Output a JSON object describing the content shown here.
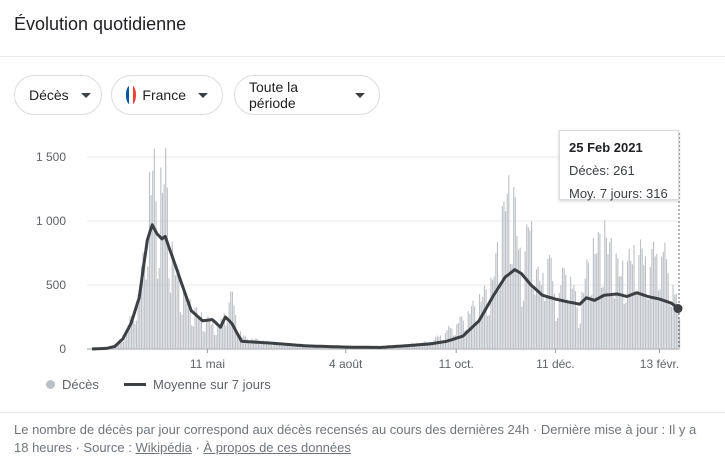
{
  "header": {
    "title": "Évolution quotidienne"
  },
  "filters": {
    "metric": "Décès",
    "country": "France",
    "period": "Toute la période"
  },
  "tooltip": {
    "date": "25 Feb 2021",
    "deaths": "Décès: 261",
    "average": "Moy. 7 jours: 316"
  },
  "legend": {
    "bars": "Décès",
    "line": "Moyenne sur 7 jours"
  },
  "footer": {
    "text": "Le nombre de décès par jour correspond aux décès recensés au cours des dernières 24h",
    "separator": "·",
    "updated": "Dernière mise à jour : Il y a 18 heures",
    "source_label": "Source :",
    "source_link": "Wikipédia",
    "about_link": "À propos de ces données"
  },
  "colors": {
    "bars": "#bdc1c6",
    "line": "#3c4043",
    "grid": "#e8eaed"
  },
  "chart_data": {
    "type": "bar",
    "x_range": [
      "2020-03-01",
      "2021-02-25"
    ],
    "ylim": [
      0,
      1500
    ],
    "y_ticks": [
      "0",
      "500",
      "1 000",
      "1 500"
    ],
    "x_ticks": [
      "11 mai",
      "4 août",
      "11 oct.",
      "11 déc.",
      "13 févr."
    ],
    "x_tick_dates": [
      "2020-05-11",
      "2020-08-04",
      "2020-10-11",
      "2020-12-11",
      "2021-02-13"
    ],
    "series": [
      {
        "name": "Décès",
        "points": [
          [
            "2020-03-01",
            0
          ],
          [
            "2020-03-10",
            5
          ],
          [
            "2020-03-15",
            20
          ],
          [
            "2020-03-20",
            100
          ],
          [
            "2020-03-25",
            260
          ],
          [
            "2020-03-30",
            500
          ],
          [
            "2020-04-02",
            800
          ],
          [
            "2020-04-05",
            1350
          ],
          [
            "2020-04-08",
            1400
          ],
          [
            "2020-04-10",
            1000
          ],
          [
            "2020-04-12",
            1300
          ],
          [
            "2020-04-15",
            1420
          ],
          [
            "2020-04-18",
            800
          ],
          [
            "2020-04-22",
            600
          ],
          [
            "2020-04-26",
            450
          ],
          [
            "2020-04-30",
            350
          ],
          [
            "2020-05-05",
            280
          ],
          [
            "2020-05-11",
            230
          ],
          [
            "2020-05-18",
            180
          ],
          [
            "2020-05-25",
            450
          ],
          [
            "2020-06-01",
            100
          ],
          [
            "2020-06-15",
            60
          ],
          [
            "2020-07-01",
            40
          ],
          [
            "2020-07-20",
            25
          ],
          [
            "2020-08-04",
            20
          ],
          [
            "2020-08-25",
            20
          ],
          [
            "2020-09-10",
            35
          ],
          [
            "2020-09-25",
            60
          ],
          [
            "2020-10-05",
            150
          ],
          [
            "2020-10-15",
            250
          ],
          [
            "2020-10-25",
            400
          ],
          [
            "2020-11-01",
            500
          ],
          [
            "2020-11-07",
            900
          ],
          [
            "2020-11-10",
            1220
          ],
          [
            "2020-11-15",
            1200
          ],
          [
            "2020-11-20",
            600
          ],
          [
            "2020-11-25",
            1050
          ],
          [
            "2020-12-01",
            500
          ],
          [
            "2020-12-06",
            800
          ],
          [
            "2020-12-11",
            400
          ],
          [
            "2020-12-18",
            700
          ],
          [
            "2020-12-25",
            300
          ],
          [
            "2021-01-01",
            750
          ],
          [
            "2021-01-10",
            900
          ],
          [
            "2021-01-20",
            600
          ],
          [
            "2021-01-30",
            800
          ],
          [
            "2021-02-06",
            700
          ],
          [
            "2021-02-13",
            850
          ],
          [
            "2021-02-20",
            600
          ],
          [
            "2021-02-25",
            261
          ]
        ]
      },
      {
        "name": "Moyenne sur 7 jours",
        "points": [
          [
            "2020-03-01",
            0
          ],
          [
            "2020-03-10",
            5
          ],
          [
            "2020-03-15",
            20
          ],
          [
            "2020-03-20",
            80
          ],
          [
            "2020-03-25",
            200
          ],
          [
            "2020-03-30",
            400
          ],
          [
            "2020-04-04",
            850
          ],
          [
            "2020-04-07",
            970
          ],
          [
            "2020-04-10",
            900
          ],
          [
            "2020-04-13",
            860
          ],
          [
            "2020-04-15",
            880
          ],
          [
            "2020-04-20",
            700
          ],
          [
            "2020-04-26",
            480
          ],
          [
            "2020-05-01",
            300
          ],
          [
            "2020-05-08",
            220
          ],
          [
            "2020-05-14",
            230
          ],
          [
            "2020-05-19",
            170
          ],
          [
            "2020-05-22",
            250
          ],
          [
            "2020-05-26",
            200
          ],
          [
            "2020-06-01",
            60
          ],
          [
            "2020-06-20",
            45
          ],
          [
            "2020-07-10",
            25
          ],
          [
            "2020-08-04",
            15
          ],
          [
            "2020-08-25",
            12
          ],
          [
            "2020-09-10",
            25
          ],
          [
            "2020-09-25",
            40
          ],
          [
            "2020-10-05",
            60
          ],
          [
            "2020-10-15",
            100
          ],
          [
            "2020-10-25",
            220
          ],
          [
            "2020-11-03",
            420
          ],
          [
            "2020-11-10",
            560
          ],
          [
            "2020-11-16",
            620
          ],
          [
            "2020-11-20",
            590
          ],
          [
            "2020-11-26",
            500
          ],
          [
            "2020-12-03",
            420
          ],
          [
            "2020-12-11",
            390
          ],
          [
            "2020-12-18",
            370
          ],
          [
            "2020-12-26",
            350
          ],
          [
            "2020-12-30",
            400
          ],
          [
            "2021-01-04",
            380
          ],
          [
            "2021-01-10",
            420
          ],
          [
            "2021-01-18",
            430
          ],
          [
            "2021-01-24",
            410
          ],
          [
            "2021-01-30",
            440
          ],
          [
            "2021-02-06",
            410
          ],
          [
            "2021-02-13",
            390
          ],
          [
            "2021-02-20",
            360
          ],
          [
            "2021-02-25",
            316
          ]
        ]
      }
    ],
    "highlight": {
      "date": "2021-02-25",
      "value": 316
    }
  }
}
